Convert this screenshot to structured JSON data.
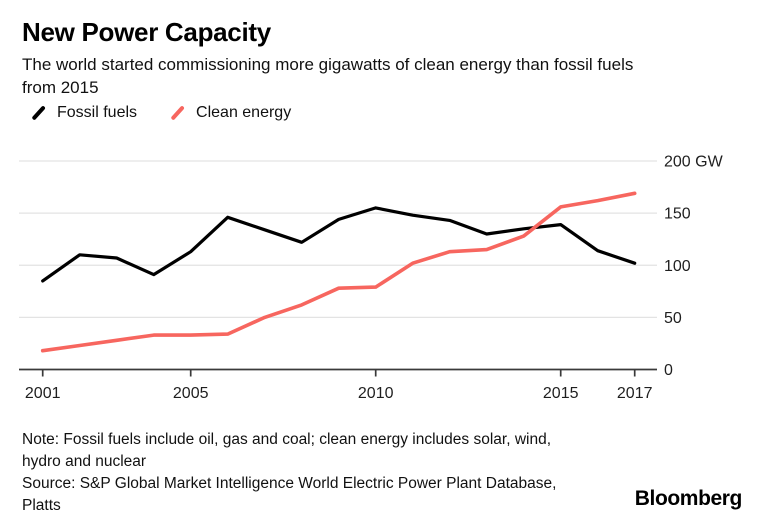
{
  "header": {
    "title": "New Power Capacity",
    "subtitle_lines": [
      "The world started commissioning more gigawatts of clean energy than fossil fuels",
      "from 2015"
    ]
  },
  "legend": {
    "items": [
      {
        "label": "Fossil fuels",
        "color": "#000000"
      },
      {
        "label": "Clean energy",
        "color": "#f7665f"
      }
    ]
  },
  "chart_data": {
    "type": "line",
    "title": "New Power Capacity",
    "x": [
      2001,
      2002,
      2003,
      2004,
      2005,
      2006,
      2007,
      2008,
      2009,
      2010,
      2011,
      2012,
      2013,
      2014,
      2015,
      2016,
      2017
    ],
    "series": [
      {
        "name": "Fossil fuels",
        "color": "#000000",
        "values": [
          85,
          110,
          107,
          91,
          113,
          146,
          134,
          122,
          144,
          155,
          148,
          143,
          130,
          135,
          139,
          114,
          102
        ]
      },
      {
        "name": "Clean energy",
        "color": "#f7665f",
        "values": [
          18,
          23,
          28,
          33,
          33,
          34,
          50,
          62,
          78,
          79,
          102,
          113,
          115,
          128,
          156,
          162,
          169
        ]
      }
    ],
    "ylabel_unit": "GW",
    "ylim": [
      0,
      200
    ],
    "y_ticks": [
      0,
      50,
      100,
      150,
      200
    ],
    "y_tick_labels": [
      "0",
      "50",
      "100",
      "150",
      "200 GW"
    ],
    "x_ticks": [
      2001,
      2005,
      2010,
      2015,
      2017
    ],
    "x_tick_labels": [
      "2001",
      "2005",
      "2010",
      "2015",
      "2017"
    ],
    "grid": "horizontal",
    "legend_position": "top-left",
    "grid_color": "#e3e3e3",
    "axis_color": "#3a3a3a",
    "tick_label_color": "#1f1f1f"
  },
  "footer": {
    "note_lines": [
      "Note: Fossil fuels include oil, gas and coal; clean energy includes solar, wind,",
      "hydro and nuclear"
    ],
    "source_lines": [
      "Source: S&P Global Market Intelligence World Electric Power Plant Database,",
      "Platts"
    ],
    "logo": "Bloomberg"
  }
}
